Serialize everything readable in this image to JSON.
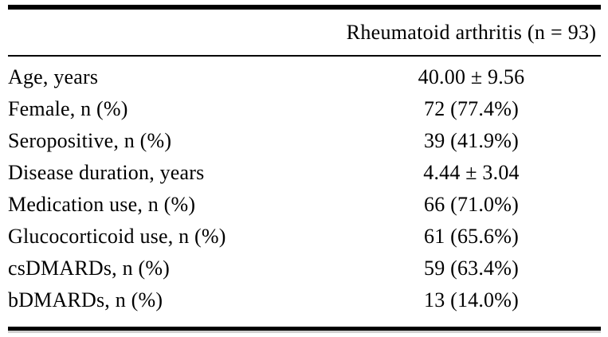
{
  "table": {
    "header": {
      "value_column": "Rheumatoid arthritis (n = 93)"
    },
    "rows": [
      {
        "label": "Age, years",
        "value": "40.00 ± 9.56"
      },
      {
        "label": "Female, n (%)",
        "value": "72 (77.4%)"
      },
      {
        "label": "Seropositive, n (%)",
        "value": "39 (41.9%)"
      },
      {
        "label": "Disease duration, years",
        "value": "4.44 ± 3.04"
      },
      {
        "label": "Medication use, n (%)",
        "value": "66 (71.0%)"
      },
      {
        "label": "Glucocorticoid use, n (%)",
        "value": "61 (65.6%)"
      },
      {
        "label": "csDMARDs, n (%)",
        "value": "59 (63.4%)"
      },
      {
        "label": "bDMARDs, n (%)",
        "value": "13 (14.0%)"
      }
    ],
    "colors": {
      "text": "#000000",
      "background": "#ffffff",
      "rule": "#000000"
    }
  }
}
